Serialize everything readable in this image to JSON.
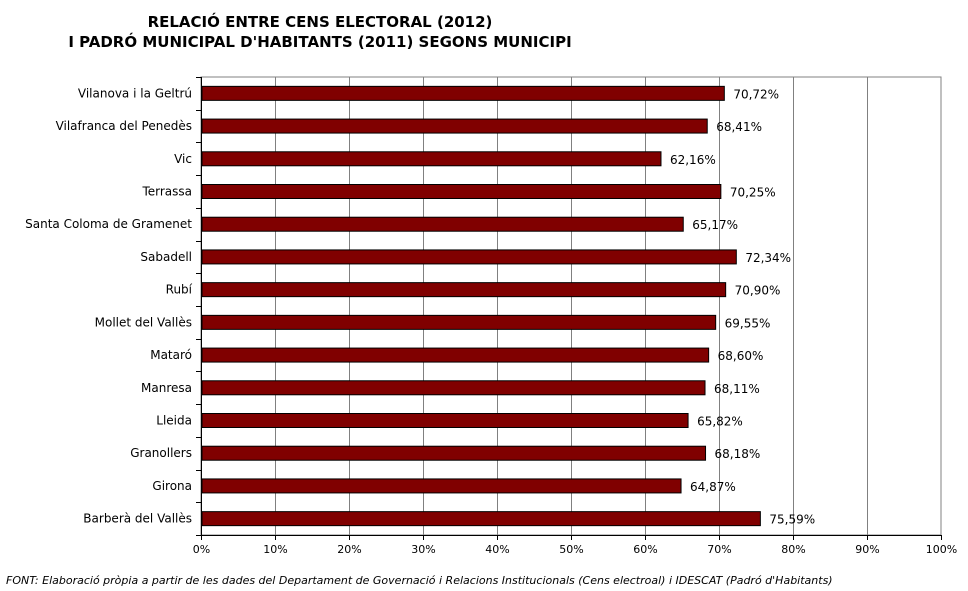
{
  "chart_data": {
    "type": "bar",
    "orientation": "horizontal",
    "title_lines": [
      "RELACIÓ ENTRE CENS ELECTORAL (2012)",
      "I PADRÓ MUNICIPAL D'HABITANTS (2011) SEGONS MUNICIPI"
    ],
    "categories": [
      "Vilanova i la Geltrú",
      "Vilafranca del Penedès",
      "Vic",
      "Terrassa",
      "Santa Coloma de Gramenet",
      "Sabadell",
      "Rubí",
      "Mollet del Vallès",
      "Mataró",
      "Manresa",
      "Lleida",
      "Granollers",
      "Girona",
      "Barberà del Vallès"
    ],
    "values": [
      70.72,
      68.41,
      62.16,
      70.25,
      65.17,
      72.34,
      70.9,
      69.55,
      68.6,
      68.11,
      65.82,
      68.18,
      64.87,
      75.59
    ],
    "data_labels": [
      "70,72%",
      "68,41%",
      "62,16%",
      "70,25%",
      "65,17%",
      "72,34%",
      "70,90%",
      "69,55%",
      "68,60%",
      "68,11%",
      "65,82%",
      "68,18%",
      "64,87%",
      "75,59%"
    ],
    "xlim": [
      0,
      100
    ],
    "x_ticks": [
      "0%",
      "10%",
      "20%",
      "30%",
      "40%",
      "50%",
      "60%",
      "70%",
      "80%",
      "90%",
      "100%"
    ],
    "grid": true,
    "bar_color": "#800000",
    "legend": "none"
  },
  "source": "FONT: Elaboració pròpia a partir de les dades del Departament de Governació i Relacions Institucionals (Cens electroal) i IDESCAT (Padró d'Habitants)"
}
